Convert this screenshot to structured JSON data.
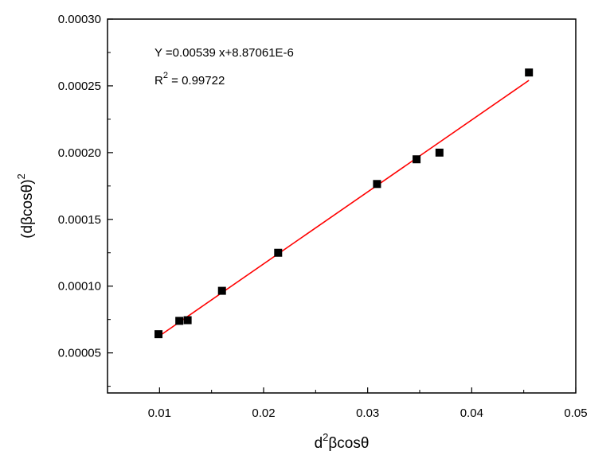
{
  "chart_data": {
    "type": "scatter",
    "title": "",
    "xlabel": {
      "base": "d",
      "sup": "2",
      "rest": "βcosθ"
    },
    "ylabel": {
      "base": "(dβcosθ)",
      "sup": "2"
    },
    "xlim": [
      0.005,
      0.05
    ],
    "ylim": [
      2e-05,
      0.0003
    ],
    "x_ticks": [
      0.01,
      0.02,
      0.03,
      0.04,
      0.05
    ],
    "x_tick_labels": [
      "0.01",
      "0.02",
      "0.03",
      "0.04",
      "0.05"
    ],
    "y_ticks": [
      5e-05,
      0.0001,
      0.00015,
      0.0002,
      0.00025,
      0.0003
    ],
    "y_tick_labels": [
      "0.00005",
      "0.00010",
      "0.00015",
      "0.00020",
      "0.00025",
      "0.00030"
    ],
    "grid": false,
    "series": [
      {
        "marker": "square",
        "color": "#000000",
        "points": [
          {
            "x": 0.0099,
            "y": 6.4e-05
          },
          {
            "x": 0.0119,
            "y": 7.4e-05
          },
          {
            "x": 0.0127,
            "y": 7.45e-05
          },
          {
            "x": 0.016,
            "y": 9.65e-05
          },
          {
            "x": 0.0214,
            "y": 0.000125
          },
          {
            "x": 0.0309,
            "y": 0.0001765
          },
          {
            "x": 0.0347,
            "y": 0.000195
          },
          {
            "x": 0.0369,
            "y": 0.0002
          },
          {
            "x": 0.0455,
            "y": 0.00026
          }
        ]
      }
    ],
    "fit_line": {
      "color": "#ff0000",
      "slope": 0.00539,
      "intercept": 8.87061e-06,
      "x_range": [
        0.0099,
        0.0455
      ]
    },
    "annotations": {
      "equation": "Y =0.00539 x+8.87061E-6",
      "r2_base": "R",
      "r2_sup": "2",
      "r2_value": " = 0.99722"
    }
  }
}
